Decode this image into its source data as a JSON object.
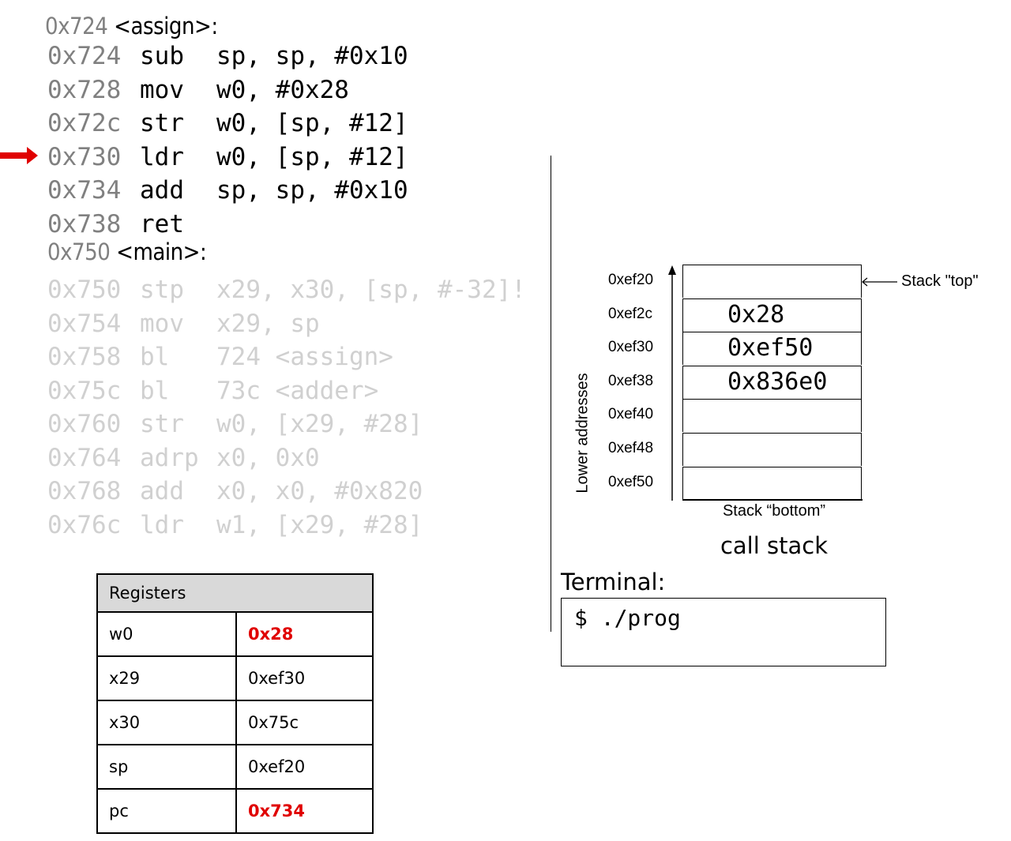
{
  "assign_header": {
    "addr": "0x724",
    "label": "<assign>:"
  },
  "assign_lines": [
    {
      "addr": "0x724",
      "mn": "sub",
      "op": "sp, sp, #0x10"
    },
    {
      "addr": "0x728",
      "mn": "mov",
      "op": "w0, #0x28"
    },
    {
      "addr": "0x72c",
      "mn": "str",
      "op": "w0, [sp, #12]"
    },
    {
      "addr": "0x730",
      "mn": "ldr",
      "op": "w0, [sp, #12]"
    },
    {
      "addr": "0x734",
      "mn": "add",
      "op": "sp, sp, #0x10"
    },
    {
      "addr": "0x738",
      "mn": "ret",
      "op": ""
    }
  ],
  "main_header": {
    "addr": "0x750",
    "label": "<main>:"
  },
  "main_lines": [
    {
      "addr": "0x750",
      "mn": "stp",
      "op": "x29, x30, [sp, #-32]!"
    },
    {
      "addr": "0x754",
      "mn": "mov",
      "op": "x29, sp"
    },
    {
      "addr": "0x758",
      "mn": "bl",
      "op": "724 <assign>"
    },
    {
      "addr": "0x75c",
      "mn": "bl",
      "op": "73c <adder>"
    },
    {
      "addr": "0x760",
      "mn": "str",
      "op": "w0, [x29, #28]"
    },
    {
      "addr": "0x764",
      "mn": "adrp",
      "op": "x0, 0x0"
    },
    {
      "addr": "0x768",
      "mn": "add",
      "op": "x0, x0, #0x820"
    },
    {
      "addr": "0x76c",
      "mn": "ldr",
      "op": "w1, [x29, #28]"
    }
  ],
  "current_instruction": "0x730",
  "arrow_color": "#e00000",
  "stack": {
    "axis_label": "Lower addresses",
    "top_label": "Stack \"top\"",
    "bottom_label": "Stack “bottom”",
    "caption": "call stack",
    "rows": [
      {
        "addr": "0xef20",
        "value": ""
      },
      {
        "addr": "0xef2c",
        "value": "0x28"
      },
      {
        "addr": "0xef30",
        "value": "0xef50"
      },
      {
        "addr": "0xef38",
        "value": "0x836e0"
      },
      {
        "addr": "0xef40",
        "value": ""
      },
      {
        "addr": "0xef48",
        "value": ""
      },
      {
        "addr": "0xef50",
        "value": ""
      }
    ]
  },
  "terminal": {
    "label": "Terminal:",
    "content": "$ ./prog"
  },
  "registers": {
    "title": "Registers",
    "rows": [
      {
        "name": "w0",
        "value": "0x28",
        "changed": true
      },
      {
        "name": "x29",
        "value": "0xef30",
        "changed": false
      },
      {
        "name": "x30",
        "value": "0x75c",
        "changed": false
      },
      {
        "name": "sp",
        "value": "0xef20",
        "changed": false
      },
      {
        "name": "pc",
        "value": "0x734",
        "changed": true
      }
    ]
  }
}
